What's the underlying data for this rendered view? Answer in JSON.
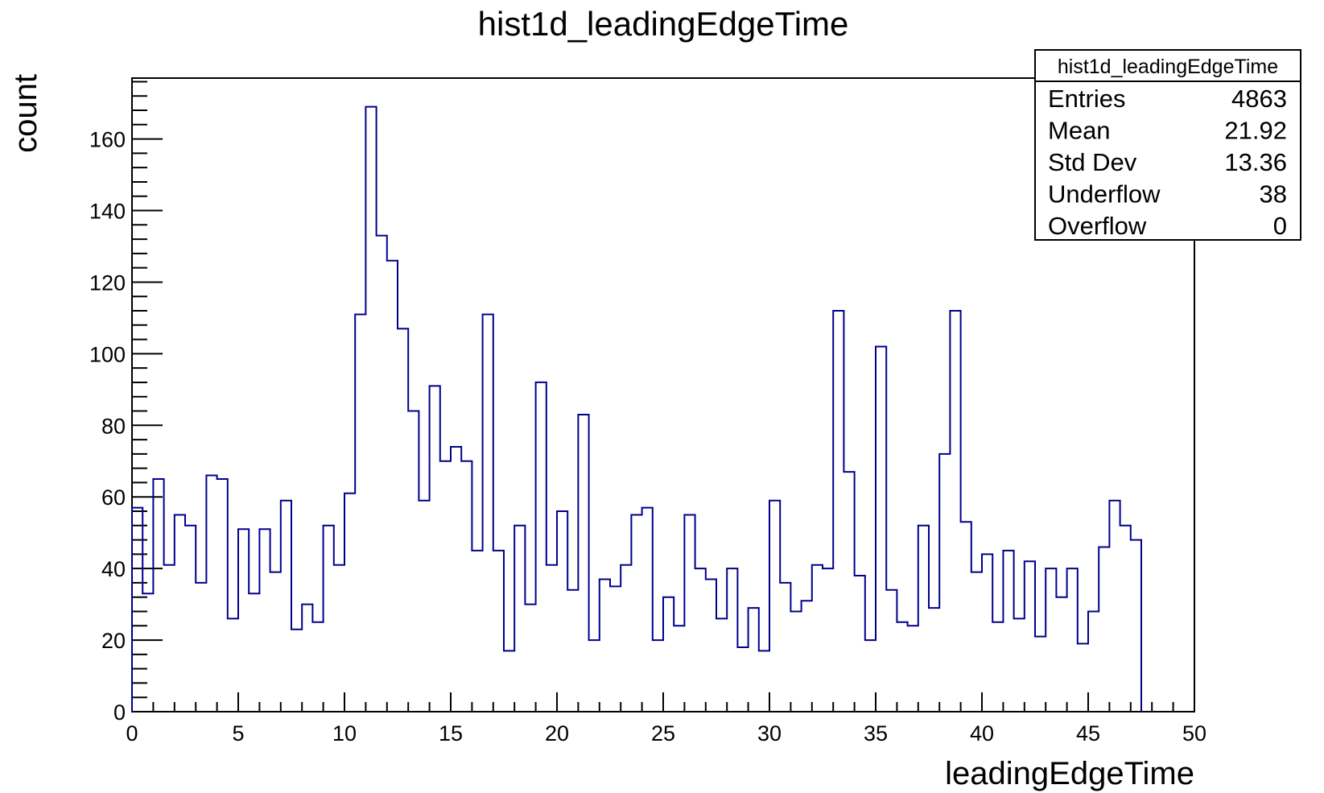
{
  "chart_data": {
    "type": "histogram-step",
    "title": "hist1d_leadingEdgeTime",
    "xlabel": "leadingEdgeTime",
    "ylabel": "count",
    "xlim": [
      0,
      50
    ],
    "ylim": [
      0,
      177
    ],
    "bin_width": 0.5,
    "x_ticks": [
      "0",
      "5",
      "10",
      "15",
      "20",
      "25",
      "30",
      "35",
      "40",
      "45",
      "50"
    ],
    "y_ticks": [
      "0",
      "20",
      "40",
      "60",
      "80",
      "100",
      "120",
      "140",
      "160"
    ],
    "line_color": "#00008b",
    "grid": false,
    "legend": "none",
    "bin_start": 0,
    "values": [
      57,
      33,
      65,
      41,
      55,
      52,
      36,
      66,
      65,
      26,
      51,
      33,
      51,
      39,
      59,
      23,
      30,
      25,
      52,
      41,
      61,
      111,
      169,
      133,
      126,
      107,
      84,
      59,
      91,
      70,
      74,
      70,
      45,
      111,
      45,
      17,
      52,
      30,
      92,
      41,
      56,
      34,
      83,
      20,
      37,
      35,
      41,
      55,
      57,
      20,
      32,
      24,
      55,
      40,
      37,
      26,
      40,
      18,
      29,
      17,
      59,
      36,
      28,
      31,
      41,
      40,
      112,
      67,
      38,
      20,
      102,
      34,
      25,
      24,
      52,
      29,
      72,
      112,
      53,
      39,
      44,
      25,
      45,
      26,
      42,
      21,
      40,
      32,
      40,
      19,
      28,
      46,
      59,
      52,
      48
    ]
  },
  "stats_box": {
    "title": "hist1d_leadingEdgeTime",
    "rows": [
      {
        "label": "Entries",
        "value": "4863"
      },
      {
        "label": "Mean",
        "value": "21.92"
      },
      {
        "label": "Std Dev",
        "value": "13.36"
      },
      {
        "label": "Underflow",
        "value": "38"
      },
      {
        "label": "Overflow",
        "value": "0"
      }
    ]
  }
}
